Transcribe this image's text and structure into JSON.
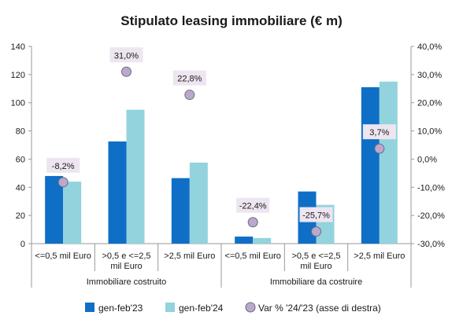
{
  "chart_data": {
    "type": "bar",
    "title": "Stipulato leasing immobiliare (€ m)",
    "categories": [
      "<=0,5 mil Euro",
      ">0,5 e <=2,5 mil Euro",
      ">2,5 mil Euro",
      "<=0,5 mil Euro",
      ">0,5 e <=2,5 mil Euro",
      ">2,5 mil Euro"
    ],
    "category_lines": [
      [
        "<=0,5 mil Euro"
      ],
      [
        ">0,5 e <=2,5",
        "mil Euro"
      ],
      [
        ">2,5 mil Euro"
      ],
      [
        "<=0,5 mil Euro"
      ],
      [
        ">0,5 e <=2,5",
        "mil Euro"
      ],
      [
        ">2,5 mil Euro"
      ]
    ],
    "groups": [
      {
        "label": "Immobiliare costruito",
        "span": [
          0,
          2
        ]
      },
      {
        "label": "Immobiliare da costruire",
        "span": [
          3,
          5
        ]
      }
    ],
    "series": [
      {
        "name": "gen-feb'23",
        "type": "bar",
        "axis": "left",
        "color": "#0f6fc6",
        "values": [
          48,
          72.5,
          46.5,
          5,
          37,
          111
        ]
      },
      {
        "name": "gen-feb'24",
        "type": "bar",
        "axis": "left",
        "color": "#93d3dd",
        "values": [
          44,
          95,
          57.5,
          4,
          27.5,
          115
        ]
      },
      {
        "name": "Var % '24/'23 (asse di destra)",
        "type": "scatter",
        "axis": "right",
        "color": "#b9a9cf",
        "values": [
          -8.2,
          31.0,
          22.8,
          -22.4,
          -25.7,
          3.7
        ],
        "labels": [
          "-8,2%",
          "31,0%",
          "22,8%",
          "-22,4%",
          "-25,7%",
          "3,7%"
        ]
      }
    ],
    "y_left": {
      "min": 0,
      "max": 140,
      "step": 20,
      "ticks": [
        "0",
        "20",
        "40",
        "60",
        "80",
        "100",
        "120",
        "140"
      ]
    },
    "y_right": {
      "min": -30,
      "max": 40,
      "step": 10,
      "ticks": [
        "-30,0%",
        "-20,0%",
        "-10,0%",
        "0,0%",
        "10,0%",
        "20,0%",
        "30,0%",
        "40,0%"
      ]
    },
    "grid": false,
    "legend_position": "bottom"
  }
}
